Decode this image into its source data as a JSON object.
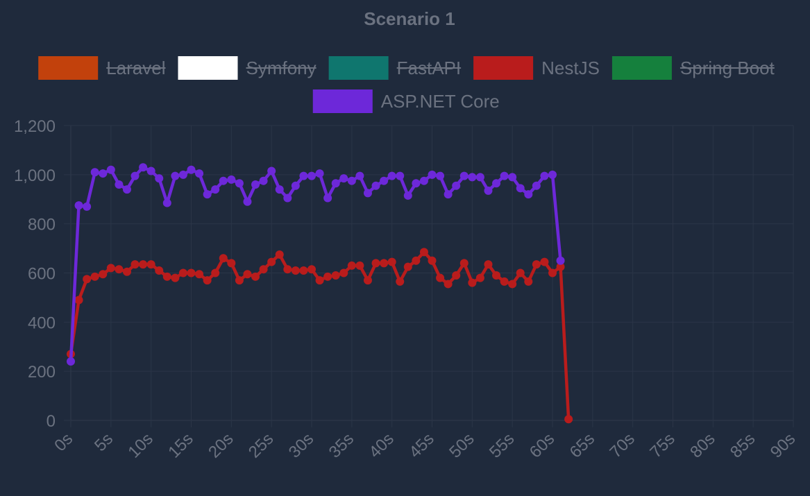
{
  "chart_data": {
    "type": "line",
    "title": "Scenario 1",
    "xlabel": "",
    "ylabel": "",
    "xlim": [
      0,
      90
    ],
    "ylim": [
      0,
      1200
    ],
    "grid": true,
    "legend_position": "top",
    "x_ticks": [
      "0s",
      "5s",
      "10s",
      "15s",
      "20s",
      "25s",
      "30s",
      "35s",
      "40s",
      "45s",
      "50s",
      "55s",
      "60s",
      "65s",
      "70s",
      "75s",
      "80s",
      "85s",
      "90s"
    ],
    "y_ticks": [
      "0",
      "200",
      "400",
      "600",
      "800",
      "1,000",
      "1,200"
    ],
    "series": [
      {
        "name": "Laravel",
        "color": "#c2410c",
        "hidden": true,
        "x": [],
        "values": []
      },
      {
        "name": "Symfony",
        "color": "#ffffff",
        "hidden": true,
        "x": [],
        "values": []
      },
      {
        "name": "FastAPI",
        "color": "#0f766e",
        "hidden": true,
        "x": [],
        "values": []
      },
      {
        "name": "NestJS",
        "color": "#b91c1c",
        "hidden": false,
        "x": [
          0,
          1,
          2,
          3,
          4,
          5,
          6,
          7,
          8,
          9,
          10,
          11,
          12,
          13,
          14,
          15,
          16,
          17,
          18,
          19,
          20,
          21,
          22,
          23,
          24,
          25,
          26,
          27,
          28,
          29,
          30,
          31,
          32,
          33,
          34,
          35,
          36,
          37,
          38,
          39,
          40,
          41,
          42,
          43,
          44,
          45,
          46,
          47,
          48,
          49,
          50,
          51,
          52,
          53,
          54,
          55,
          56,
          57,
          58,
          59,
          60,
          61,
          62
        ],
        "values": [
          270,
          490,
          575,
          585,
          595,
          620,
          615,
          605,
          635,
          635,
          635,
          610,
          585,
          580,
          600,
          600,
          595,
          570,
          600,
          660,
          640,
          570,
          595,
          585,
          615,
          645,
          675,
          615,
          610,
          610,
          615,
          570,
          585,
          590,
          600,
          630,
          630,
          570,
          640,
          640,
          645,
          565,
          625,
          650,
          685,
          650,
          580,
          555,
          590,
          640,
          560,
          580,
          635,
          590,
          565,
          555,
          600,
          565,
          635,
          645,
          600,
          625,
          5
        ]
      },
      {
        "name": "Spring Boot",
        "color": "#15803d",
        "hidden": true,
        "x": [],
        "values": []
      },
      {
        "name": "ASP.NET Core",
        "color": "#6d28d9",
        "hidden": false,
        "x": [
          0,
          1,
          2,
          3,
          4,
          5,
          6,
          7,
          8,
          9,
          10,
          11,
          12,
          13,
          14,
          15,
          16,
          17,
          18,
          19,
          20,
          21,
          22,
          23,
          24,
          25,
          26,
          27,
          28,
          29,
          30,
          31,
          32,
          33,
          34,
          35,
          36,
          37,
          38,
          39,
          40,
          41,
          42,
          43,
          44,
          45,
          46,
          47,
          48,
          49,
          50,
          51,
          52,
          53,
          54,
          55,
          56,
          57,
          58,
          59,
          60,
          61
        ],
        "values": [
          240,
          875,
          870,
          1010,
          1005,
          1020,
          960,
          940,
          995,
          1030,
          1015,
          985,
          885,
          995,
          1000,
          1020,
          1005,
          920,
          940,
          975,
          980,
          965,
          890,
          960,
          975,
          1015,
          940,
          905,
          955,
          995,
          995,
          1005,
          905,
          965,
          985,
          975,
          995,
          925,
          955,
          975,
          995,
          995,
          915,
          965,
          975,
          1000,
          995,
          920,
          955,
          995,
          990,
          990,
          935,
          965,
          995,
          990,
          945,
          920,
          955,
          995,
          1000,
          650
        ]
      }
    ]
  }
}
